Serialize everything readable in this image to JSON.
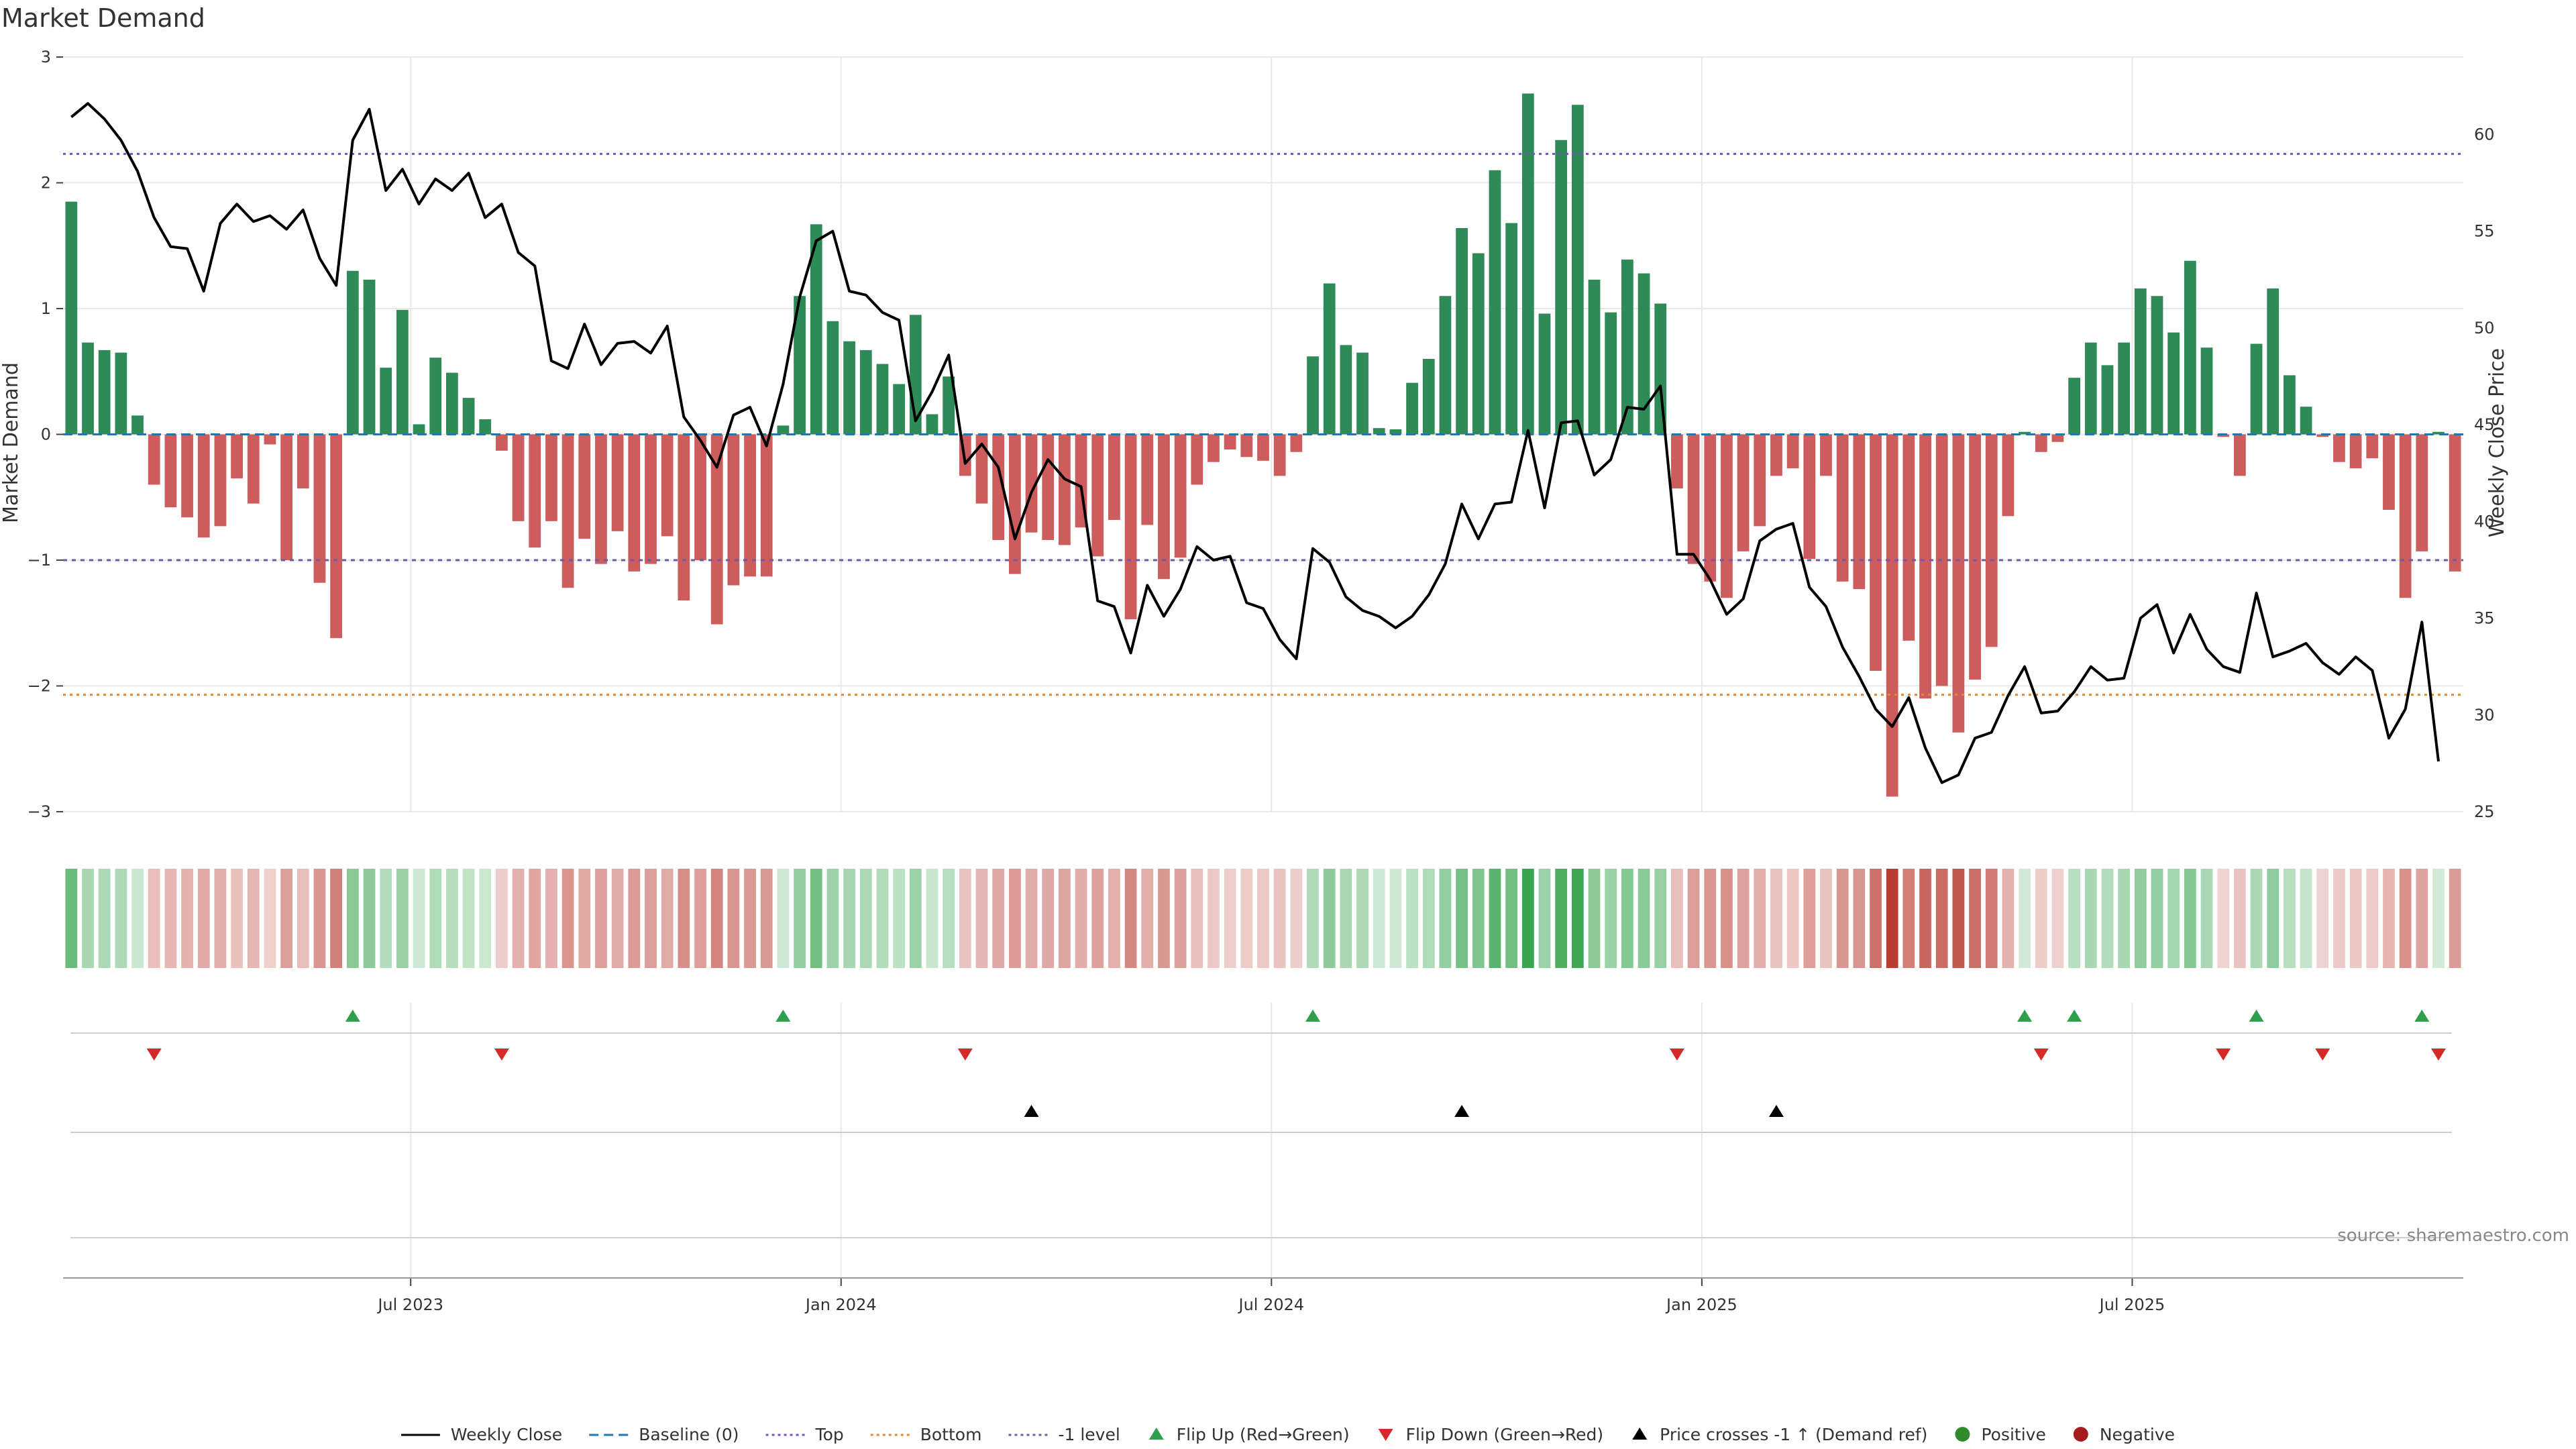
{
  "chart_data": {
    "type": "bar",
    "title": "Market Demand",
    "ylabel": "Market Demand",
    "y2label": "Weekly Close Price",
    "ylim": [
      -3,
      3
    ],
    "y2lim": [
      25,
      64
    ],
    "yticks": [
      -3,
      -2,
      -1,
      0,
      1,
      2,
      3
    ],
    "y2ticks": [
      25,
      30,
      35,
      40,
      45,
      50,
      55,
      60
    ],
    "x_tick_labels": [
      {
        "label": "Jul 2023",
        "week": 21
      },
      {
        "label": "Jan 2024",
        "week": 47
      },
      {
        "label": "Jul 2024",
        "week": 73
      },
      {
        "label": "Jan 2025",
        "week": 99
      },
      {
        "label": "Jul 2025",
        "week": 125
      }
    ],
    "levels": {
      "top": 2.23,
      "bottom": -2.07,
      "minus_one": -1.0,
      "baseline": 0
    },
    "series": [
      {
        "name": "Market Demand",
        "values": [
          1.85,
          0.73,
          0.67,
          0.65,
          0.15,
          -0.4,
          -0.58,
          -0.66,
          -0.82,
          -0.73,
          -0.35,
          -0.55,
          -0.08,
          -1.0,
          -0.43,
          -1.18,
          -1.62,
          1.3,
          1.23,
          0.53,
          0.99,
          0.08,
          0.61,
          0.49,
          0.29,
          0.12,
          -0.13,
          -0.69,
          -0.9,
          -0.69,
          -1.22,
          -0.83,
          -1.03,
          -0.77,
          -1.09,
          -1.03,
          -0.81,
          -1.32,
          -1.0,
          -1.51,
          -1.2,
          -1.13,
          -1.13,
          0.07,
          1.1,
          1.67,
          0.9,
          0.74,
          0.67,
          0.56,
          0.4,
          0.95,
          0.16,
          0.46,
          -0.33,
          -0.55,
          -0.84,
          -1.11,
          -0.78,
          -0.84,
          -0.88,
          -0.74,
          -0.97,
          -0.68,
          -1.47,
          -0.72,
          -1.15,
          -0.98,
          -0.4,
          -0.22,
          -0.12,
          -0.18,
          -0.21,
          -0.33,
          -0.14,
          0.62,
          1.2,
          0.71,
          0.65,
          0.05,
          0.04,
          0.41,
          0.6,
          1.1,
          1.64,
          1.44,
          2.1,
          1.68,
          2.71,
          0.96,
          2.34,
          2.62,
          1.23,
          0.97,
          1.39,
          1.28,
          1.04,
          -0.43,
          -1.03,
          -1.17,
          -1.3,
          -0.93,
          -0.73,
          -0.33,
          -0.27,
          -0.99,
          -0.33,
          -1.17,
          -1.23,
          -1.88,
          -2.88,
          -1.64,
          -2.1,
          -2.0,
          -2.37,
          -1.95,
          -1.69,
          -0.65,
          0.02,
          -0.14,
          -0.06,
          0.45,
          0.73,
          0.55,
          0.73,
          1.16,
          1.1,
          0.81,
          1.38,
          0.69,
          -0.02,
          -0.33,
          0.72,
          1.16,
          0.47,
          0.22,
          -0.02,
          -0.22,
          -0.27,
          -0.19,
          -0.6,
          -1.3,
          -0.93,
          0.02,
          -1.09
        ]
      },
      {
        "name": "Weekly Close",
        "values": [
          60.9,
          61.6,
          60.8,
          59.7,
          58.1,
          55.7,
          54.2,
          54.1,
          51.9,
          55.4,
          56.4,
          55.5,
          55.8,
          55.1,
          56.1,
          53.6,
          52.2,
          59.7,
          61.3,
          57.1,
          58.2,
          56.4,
          57.7,
          57.1,
          58.0,
          55.7,
          56.4,
          53.9,
          53.2,
          48.3,
          47.9,
          50.2,
          48.1,
          49.2,
          49.3,
          48.7,
          50.1,
          45.4,
          44.2,
          42.8,
          45.5,
          45.9,
          43.9,
          47.1,
          51.6,
          54.5,
          55.0,
          51.9,
          51.7,
          50.8,
          50.4,
          45.2,
          46.7,
          48.6,
          43.0,
          44.0,
          42.8,
          39.1,
          41.5,
          43.2,
          42.2,
          41.8,
          35.9,
          35.6,
          33.2,
          36.7,
          35.1,
          36.5,
          38.7,
          38.0,
          38.2,
          35.8,
          35.5,
          33.9,
          32.9,
          38.6,
          37.9,
          36.1,
          35.4,
          35.1,
          34.5,
          35.1,
          36.2,
          37.8,
          40.9,
          39.1,
          40.9,
          41.0,
          44.7,
          40.7,
          45.1,
          45.2,
          42.4,
          43.2,
          45.9,
          45.8,
          47.0,
          38.3,
          38.3,
          37.0,
          35.2,
          36.0,
          39.0,
          39.6,
          39.9,
          36.6,
          35.6,
          33.5,
          32.0,
          30.3,
          29.4,
          30.9,
          28.3,
          26.5,
          26.9,
          28.8,
          29.1,
          31.0,
          32.5,
          30.1,
          30.2,
          31.2,
          32.5,
          31.8,
          31.9,
          35.0,
          35.7,
          33.2,
          35.2,
          33.4,
          32.5,
          32.2,
          36.3,
          33.0,
          33.3,
          33.7,
          32.7,
          32.1,
          33.0,
          32.3,
          28.8,
          30.3,
          34.8,
          27.6
        ]
      }
    ],
    "timeline_strip": "diverging color intensity by demand value",
    "flip_up_weeks": [
      17,
      43,
      75,
      118,
      121,
      132,
      142
    ],
    "flip_down_weeks": [
      5,
      26,
      54,
      97,
      119,
      130,
      136,
      143
    ],
    "price_cross_weeks": [
      58,
      84,
      103
    ],
    "legend": [
      {
        "label": "Weekly Close",
        "style": "solid-line",
        "color": "#000000"
      },
      {
        "label": "Baseline (0)",
        "style": "dashed-line",
        "color": "#1f77b4"
      },
      {
        "label": "Top",
        "style": "dotted-line",
        "color": "#7b4fbf"
      },
      {
        "label": "Bottom",
        "style": "dotted-line",
        "color": "#e08a2b"
      },
      {
        "label": "-1 level",
        "style": "dotted-line",
        "color": "#6b5aa8"
      },
      {
        "label": "Flip Up (Red→Green)",
        "style": "triangle-up",
        "color": "#2e9e4f"
      },
      {
        "label": "Flip Down (Green→Red)",
        "style": "triangle-down",
        "color": "#d42a2a"
      },
      {
        "label": "Price crosses -1 ↑ (Demand ref)",
        "style": "triangle-up",
        "color": "#000000"
      },
      {
        "label": "Positive",
        "style": "dot",
        "color": "#2e8b2e"
      },
      {
        "label": "Negative",
        "style": "dot",
        "color": "#a61c1c"
      }
    ],
    "source": "source: sharemaestro.com"
  },
  "colors": {
    "positive_bar": "#2e8b57",
    "negative_bar": "#cd5c5c",
    "price_line": "#000000",
    "grid": "#e8e8e8"
  }
}
